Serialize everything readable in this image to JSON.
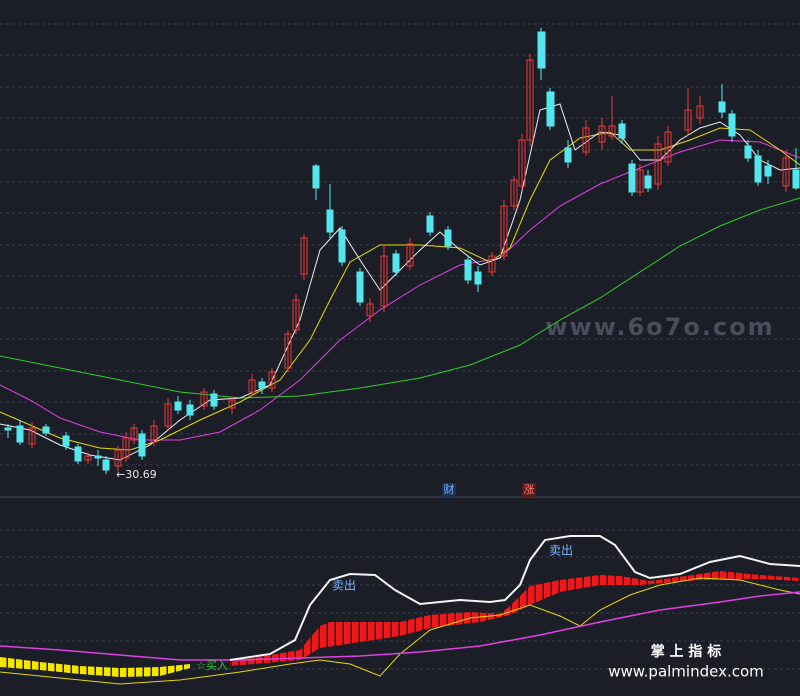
{
  "price_label": "30.69",
  "markers": [
    "财",
    "涨"
  ],
  "indicator_labels": {
    "sell_1": "卖出",
    "sell_2": "卖出",
    "buy": "☆买入"
  },
  "watermark": "www.6o7o.com",
  "footer": {
    "title": "掌 上 指 标",
    "url": "www.palmindex.com"
  }
}
